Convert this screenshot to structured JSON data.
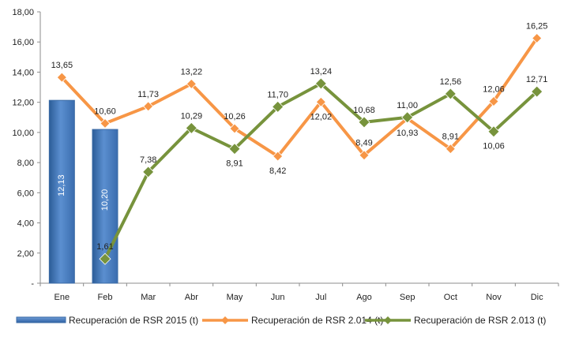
{
  "chart_data": {
    "type": "bar",
    "categories": [
      "Ene",
      "Feb",
      "Mar",
      "Abr",
      "May",
      "Jun",
      "Jul",
      "Ago",
      "Sep",
      "Oct",
      "Nov",
      "Dic"
    ],
    "ylim": [
      0,
      18
    ],
    "yticks": [
      "-",
      "2,00",
      "4,00",
      "6,00",
      "8,00",
      "10,00",
      "12,00",
      "14,00",
      "16,00",
      "18,00"
    ],
    "grid": false,
    "legend_position": "bottom",
    "series": [
      {
        "name": "Recuperación de RSR 2015 (t)",
        "type": "bar",
        "color": "#4a7ebb",
        "values": [
          12.13,
          10.2,
          null,
          null,
          null,
          null,
          null,
          null,
          null,
          null,
          null,
          null
        ],
        "labels": [
          "12,13",
          "10,20",
          null,
          null,
          null,
          null,
          null,
          null,
          null,
          null,
          null,
          null
        ]
      },
      {
        "name": "Recuperación de RSR 2.014 (t)",
        "type": "line",
        "color": "#f79646",
        "values": [
          13.65,
          10.6,
          11.73,
          13.22,
          10.26,
          8.42,
          12.02,
          8.49,
          10.93,
          8.91,
          12.06,
          16.25
        ],
        "labels": [
          "13,65",
          "10,60",
          "11,73",
          "13,22",
          "10,26",
          "8,42",
          "12,02",
          "8,49",
          "10,93",
          "8,91",
          "12,06",
          "16,25"
        ]
      },
      {
        "name": "Recuperación de RSR 2.013 (t)",
        "type": "line",
        "color": "#77933c",
        "values": [
          null,
          1.61,
          7.38,
          10.29,
          8.91,
          11.7,
          13.24,
          10.68,
          11.0,
          12.56,
          10.06,
          12.71
        ],
        "labels": [
          null,
          "1,61",
          "7,38",
          "10,29",
          "8,91",
          "11,70",
          "13,24",
          "10,68",
          "11,00",
          "12,56",
          "10,06",
          "12,71"
        ]
      }
    ]
  }
}
